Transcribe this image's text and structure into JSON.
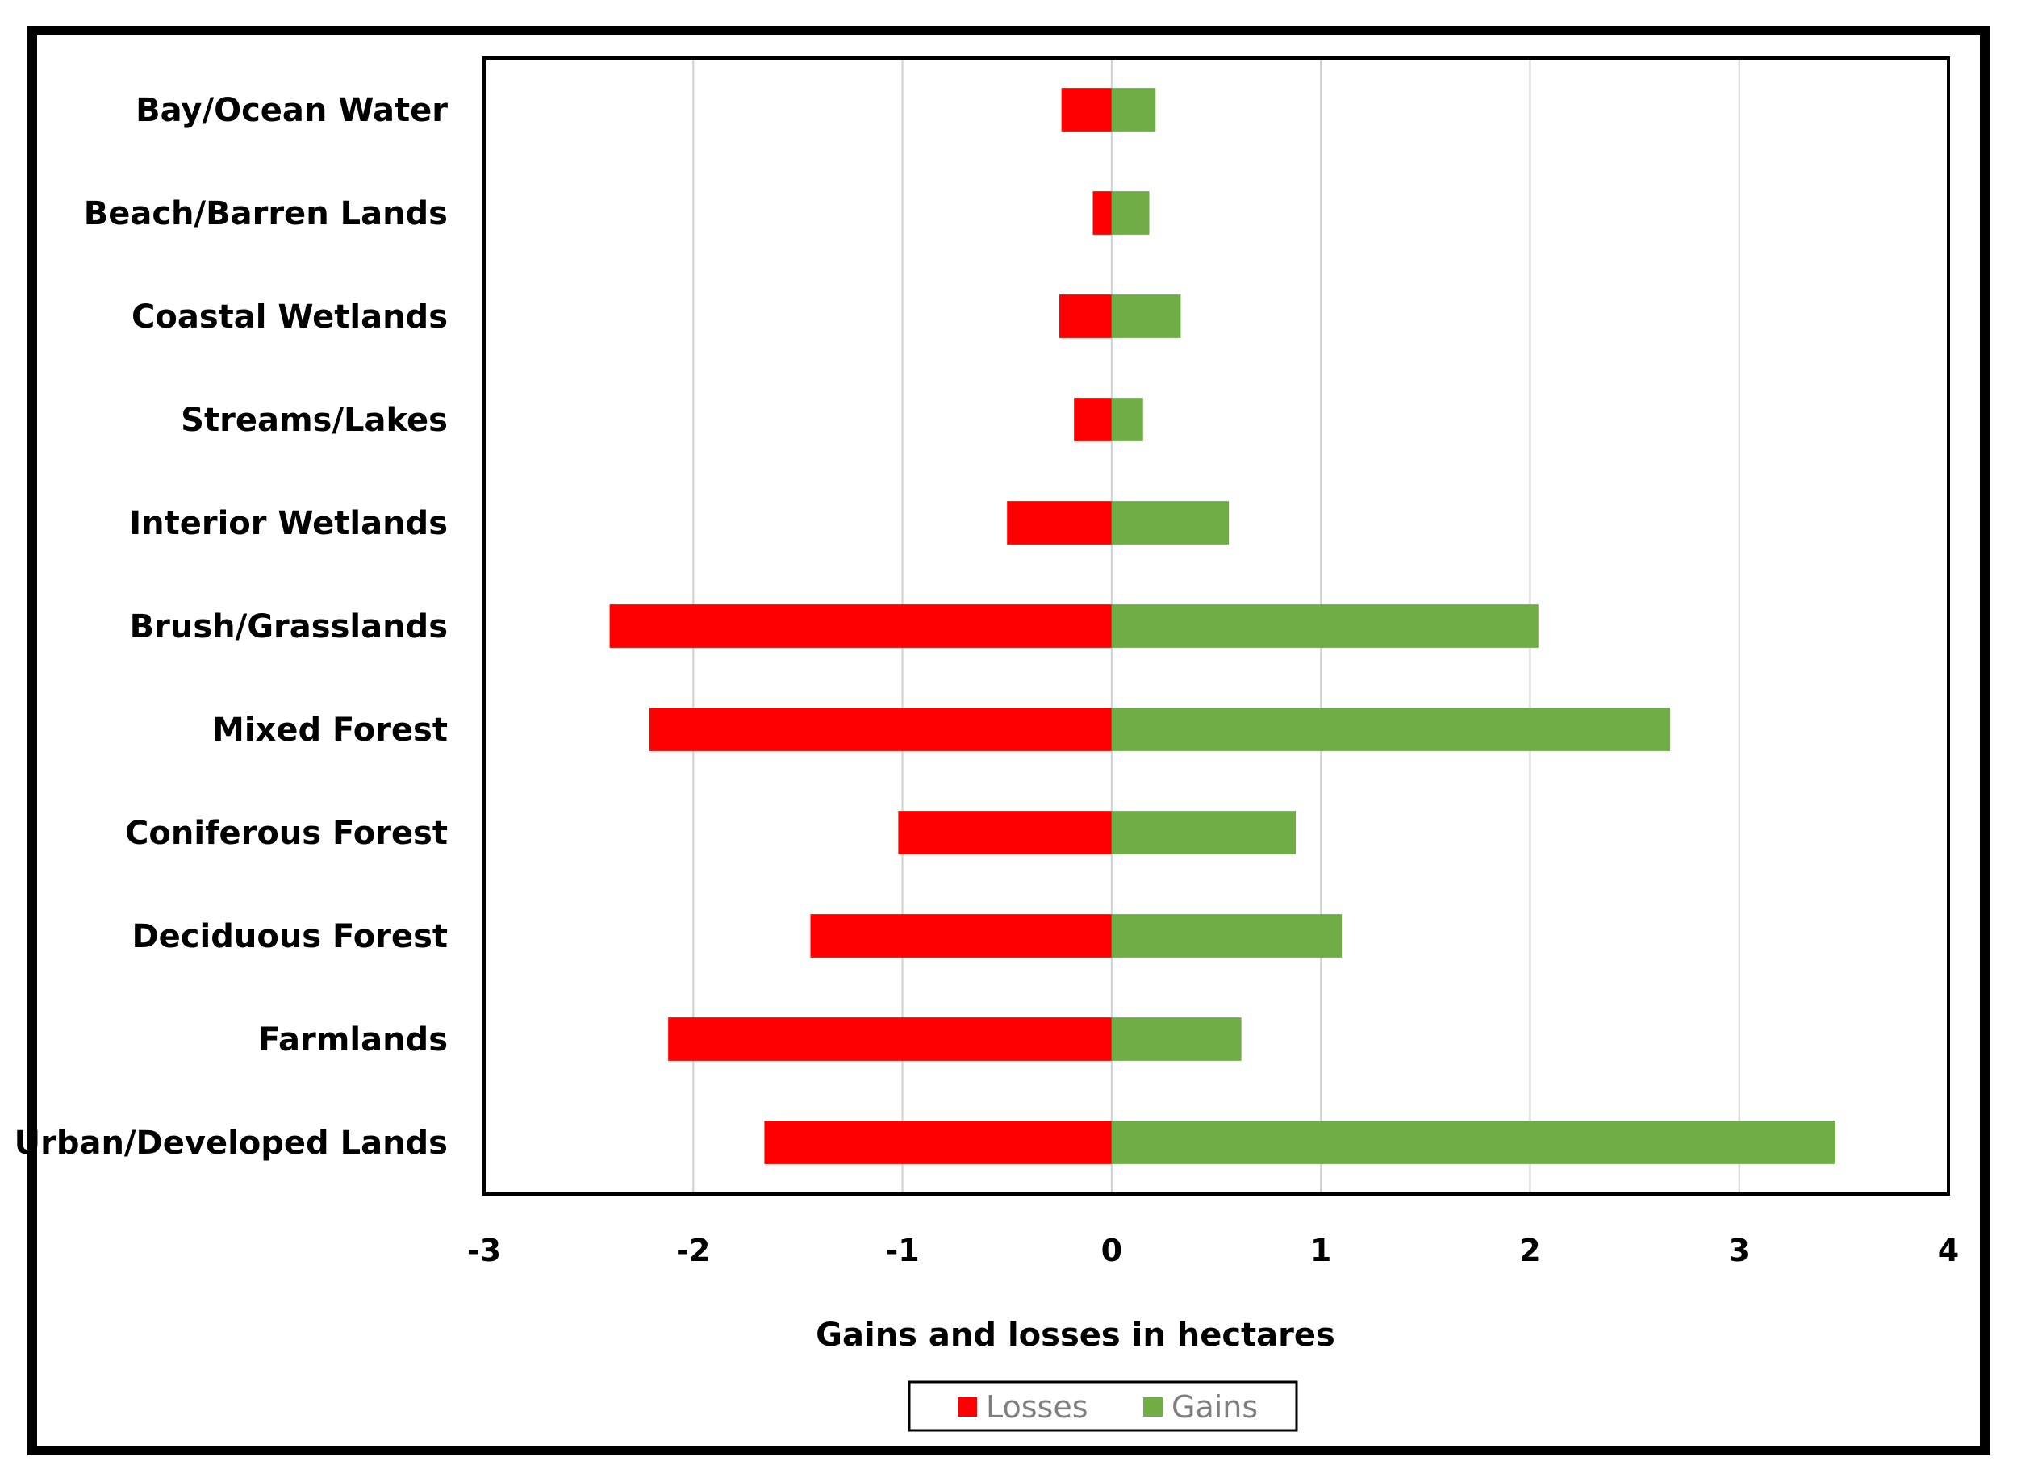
{
  "chart_data": {
    "type": "bar",
    "orientation": "horizontal",
    "stacked": "diverging",
    "title": "",
    "xlabel": "Gains and losses in hectares",
    "ylabel": "",
    "xlim": [
      -3,
      4
    ],
    "xticks": [
      "-3",
      "-2",
      "-1",
      "0",
      "1",
      "2",
      "3",
      "4"
    ],
    "grid": "vertical",
    "legend_position": "bottom",
    "categories": [
      "Bay/Ocean Water",
      "Beach/Barren Lands",
      "Coastal Wetlands",
      "Streams/Lakes",
      "Interior Wetlands",
      "Brush/Grasslands",
      "Mixed Forest",
      "Coniferous Forest",
      "Deciduous Forest",
      "Farmlands",
      "Urban/Developed Lands"
    ],
    "series": [
      {
        "name": "Losses",
        "color": "#ff0000",
        "values": [
          -0.24,
          -0.09,
          -0.25,
          -0.18,
          -0.5,
          -2.4,
          -2.21,
          -1.02,
          -1.44,
          -2.12,
          -1.66
        ]
      },
      {
        "name": "Gains",
        "color": "#70ad47",
        "values": [
          0.21,
          0.18,
          0.33,
          0.15,
          0.56,
          2.04,
          2.67,
          0.88,
          1.1,
          0.62,
          3.46
        ]
      }
    ]
  }
}
